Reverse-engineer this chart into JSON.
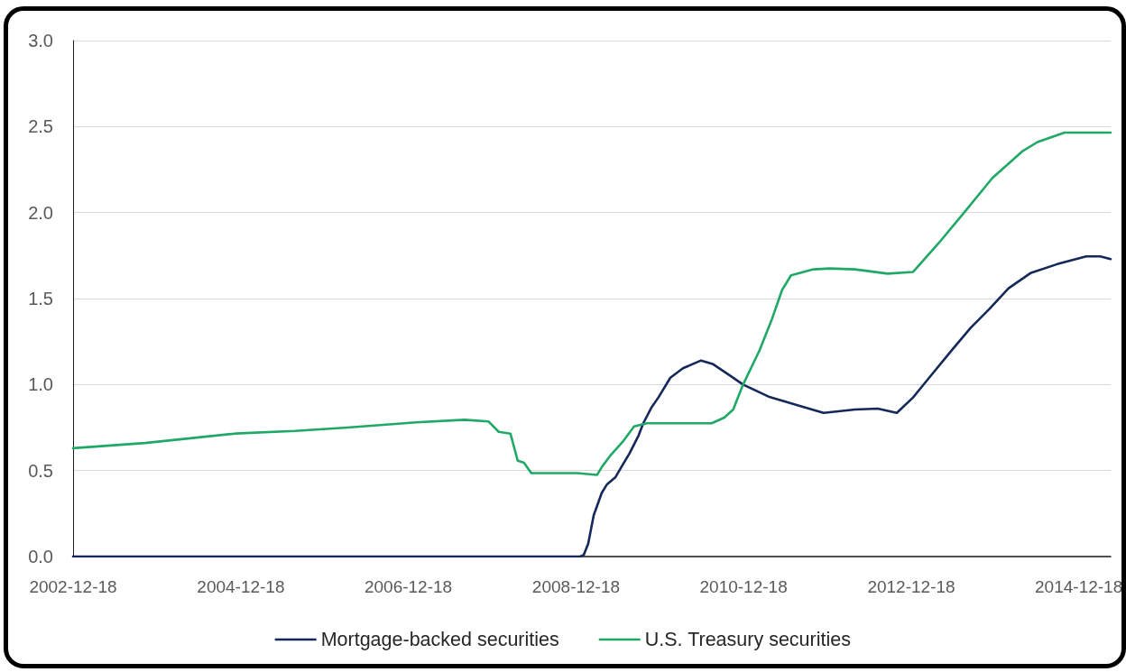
{
  "chart_data": {
    "type": "line",
    "xlim": [
      "2002-12-18",
      "2015-05-06"
    ],
    "xticks": [
      "2002-12-18",
      "2004-12-18",
      "2006-12-18",
      "2008-12-18",
      "2010-12-18",
      "2012-12-18",
      "2014-12-18"
    ],
    "ylim": [
      0,
      3
    ],
    "yticks": [
      {
        "value": 0,
        "label": "0.0"
      },
      0.5,
      {
        "value": 1,
        "label": "1.0"
      },
      1.5,
      {
        "value": 2,
        "label": "2.0"
      },
      2.5,
      {
        "value": 3,
        "label": "3.0"
      }
    ],
    "grid": "y",
    "legend": "bottom",
    "series": [
      {
        "name": "Mortgage-backed securities",
        "color": "#14285a",
        "x": [
          "2002-12-18",
          "2009-01-05",
          "2009-01-21",
          "2009-02-09",
          "2009-03-05",
          "2009-04-09",
          "2009-05-02",
          "2009-06-07",
          "2009-07-08",
          "2009-08-08",
          "2009-09-17",
          "2009-10-07",
          "2009-11-11",
          "2009-12-12",
          "2010-02-02",
          "2010-03-29",
          "2010-06-16",
          "2010-08-05",
          "2010-10-23",
          "2010-12-16",
          "2011-04-06",
          "2011-08-10",
          "2011-12-02",
          "2012-04-17",
          "2012-07-25",
          "2012-10-16",
          "2012-12-26",
          "2013-03-06",
          "2013-06-13",
          "2013-09-03",
          "2013-11-24",
          "2014-02-15",
          "2014-05-24",
          "2014-09-15",
          "2015-01-19",
          "2015-03-22",
          "2015-05-06"
        ],
        "values": [
          0,
          0,
          0.01,
          0.075,
          0.24,
          0.37,
          0.42,
          0.46,
          0.53,
          0.6,
          0.705,
          0.775,
          0.865,
          0.925,
          1.04,
          1.095,
          1.14,
          1.12,
          1.05,
          1.0,
          0.93,
          0.88,
          0.835,
          0.855,
          0.86,
          0.835,
          0.925,
          1.04,
          1.2,
          1.33,
          1.44,
          1.56,
          1.65,
          1.7,
          1.745,
          1.745,
          1.73
        ]
      },
      {
        "name": "U.S. Treasury securities",
        "color": "#20a866",
        "x": [
          "2002-12-18",
          "2003-10-28",
          "2004-11-24",
          "2005-08-11",
          "2006-03-27",
          "2007-01-20",
          "2007-08-19",
          "2007-12-03",
          "2008-01-16",
          "2008-03-07",
          "2008-04-08",
          "2008-05-05",
          "2008-06-06",
          "2008-12-24",
          "2009-03-20",
          "2009-04-09",
          "2009-05-18",
          "2009-07-08",
          "2009-08-28",
          "2009-10-23",
          "2010-08-01",
          "2010-09-25",
          "2010-11-03",
          "2010-12-16",
          "2011-02-26",
          "2011-04-22",
          "2011-06-04",
          "2011-07-13",
          "2011-10-19",
          "2011-12-29",
          "2012-04-17",
          "2012-09-06",
          "2012-12-26",
          "2013-04-15",
          "2013-07-30",
          "2013-12-06",
          "2014-04-15",
          "2014-06-21",
          "2014-10-17",
          "2015-05-06"
        ],
        "values": [
          0.63,
          0.66,
          0.715,
          0.73,
          0.75,
          0.78,
          0.795,
          0.785,
          0.725,
          0.715,
          0.557,
          0.545,
          0.485,
          0.485,
          0.475,
          0.52,
          0.59,
          0.665,
          0.757,
          0.775,
          0.775,
          0.808,
          0.855,
          1.0,
          1.2,
          1.385,
          1.55,
          1.635,
          1.67,
          1.675,
          1.67,
          1.645,
          1.655,
          1.82,
          1.99,
          2.2,
          2.355,
          2.41,
          2.465,
          2.465
        ]
      }
    ]
  }
}
